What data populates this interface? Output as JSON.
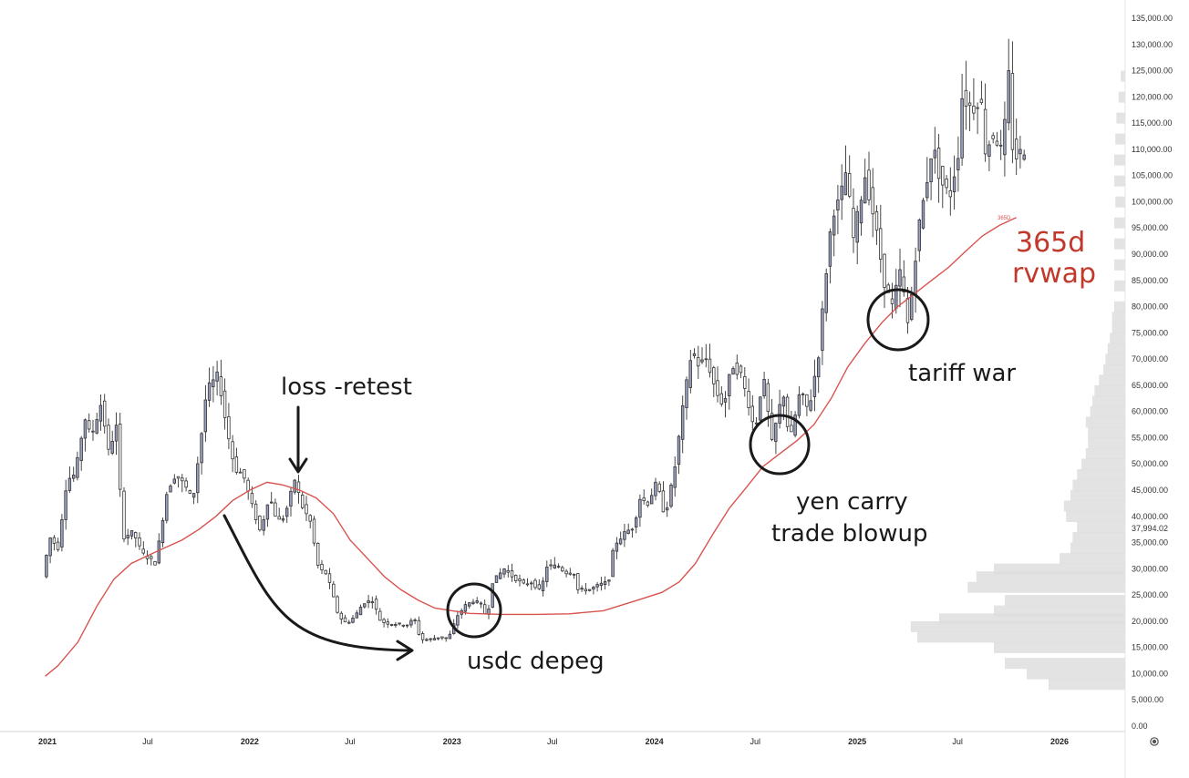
{
  "chart_data": {
    "type": "candlestick",
    "y_axis": {
      "range": [
        0,
        135000
      ],
      "tick_labels": [
        "0.00",
        "5,000.00",
        "10,000.00",
        "15,000.00",
        "20,000.00",
        "25,000.00",
        "30,000.00",
        "35,000.00",
        "40,000.00",
        "45,000.00",
        "50,000.00",
        "55,000.00",
        "60,000.00",
        "65,000.00",
        "70,000.00",
        "75,000.00",
        "80,000.00",
        "85,000.00",
        "90,000.00",
        "95,000.00",
        "100,000.00",
        "105,000.00",
        "110,000.00",
        "115,000.00",
        "120,000.00",
        "125,000.00",
        "130,000.00",
        "135,000.00"
      ],
      "current_price_label": "37,994.02",
      "current_price": 37994.02
    },
    "x_axis": {
      "range": [
        "2020-12",
        "2026-03"
      ],
      "ticks": [
        {
          "date": "2021-01",
          "label": "2021",
          "bold": true
        },
        {
          "date": "2021-07",
          "label": "Jul",
          "bold": false
        },
        {
          "date": "2022-01",
          "label": "2022",
          "bold": true
        },
        {
          "date": "2022-07",
          "label": "Jul",
          "bold": false
        },
        {
          "date": "2023-01",
          "label": "2023",
          "bold": true
        },
        {
          "date": "2023-07",
          "label": "Jul",
          "bold": false
        },
        {
          "date": "2024-01",
          "label": "2024",
          "bold": true
        },
        {
          "date": "2024-07",
          "label": "Jul",
          "bold": false
        },
        {
          "date": "2025-01",
          "label": "2025",
          "bold": true
        },
        {
          "date": "2025-07",
          "label": "Jul",
          "bold": false
        },
        {
          "date": "2026-01",
          "label": "2026",
          "bold": true
        }
      ]
    },
    "price_path": [
      [
        "2020-12-28",
        28500
      ],
      [
        "2021-01-10",
        36000
      ],
      [
        "2021-01-25",
        34000
      ],
      [
        "2021-02-10",
        47000
      ],
      [
        "2021-02-25",
        48000
      ],
      [
        "2021-03-14",
        59000
      ],
      [
        "2021-03-25",
        55000
      ],
      [
        "2021-04-14",
        62000
      ],
      [
        "2021-04-25",
        52000
      ],
      [
        "2021-05-10",
        57000
      ],
      [
        "2021-05-22",
        36000
      ],
      [
        "2021-06-10",
        37000
      ],
      [
        "2021-06-25",
        33000
      ],
      [
        "2021-07-20",
        31000
      ],
      [
        "2021-08-10",
        45000
      ],
      [
        "2021-08-25",
        48000
      ],
      [
        "2021-09-10",
        46000
      ],
      [
        "2021-09-25",
        43000
      ],
      [
        "2021-10-10",
        55000
      ],
      [
        "2021-10-20",
        64000
      ],
      [
        "2021-11-10",
        67000
      ],
      [
        "2021-11-25",
        57000
      ],
      [
        "2021-12-10",
        49000
      ],
      [
        "2021-12-25",
        48000
      ],
      [
        "2022-01-10",
        42000
      ],
      [
        "2022-01-25",
        37000
      ],
      [
        "2022-02-10",
        44000
      ],
      [
        "2022-02-25",
        39000
      ],
      [
        "2022-03-10",
        40000
      ],
      [
        "2022-03-28",
        47000
      ],
      [
        "2022-04-10",
        42000
      ],
      [
        "2022-04-25",
        39000
      ],
      [
        "2022-05-10",
        30000
      ],
      [
        "2022-05-25",
        29000
      ],
      [
        "2022-06-15",
        21000
      ],
      [
        "2022-06-30",
        19500
      ],
      [
        "2022-07-15",
        21000
      ],
      [
        "2022-07-30",
        23500
      ],
      [
        "2022-08-15",
        24000
      ],
      [
        "2022-08-30",
        20000
      ],
      [
        "2022-09-15",
        19500
      ],
      [
        "2022-09-30",
        19500
      ],
      [
        "2022-10-15",
        19200
      ],
      [
        "2022-10-30",
        20500
      ],
      [
        "2022-11-10",
        16500
      ],
      [
        "2022-11-25",
        16500
      ],
      [
        "2022-12-15",
        17000
      ],
      [
        "2022-12-30",
        16600
      ],
      [
        "2023-01-15",
        21000
      ],
      [
        "2023-01-30",
        23000
      ],
      [
        "2023-02-15",
        24000
      ],
      [
        "2023-02-28",
        23000
      ],
      [
        "2023-03-10",
        20500
      ],
      [
        "2023-03-20",
        27500
      ],
      [
        "2023-04-10",
        30000
      ],
      [
        "2023-04-25",
        28500
      ],
      [
        "2023-05-15",
        27000
      ],
      [
        "2023-05-30",
        27500
      ],
      [
        "2023-06-15",
        25500
      ],
      [
        "2023-06-25",
        30500
      ],
      [
        "2023-07-15",
        30500
      ],
      [
        "2023-07-30",
        29300
      ],
      [
        "2023-08-15",
        29200
      ],
      [
        "2023-08-20",
        26000
      ],
      [
        "2023-09-10",
        26000
      ],
      [
        "2023-09-30",
        27000
      ],
      [
        "2023-10-15",
        27500
      ],
      [
        "2023-10-25",
        34500
      ],
      [
        "2023-11-15",
        37000
      ],
      [
        "2023-11-30",
        38000
      ],
      [
        "2023-12-10",
        43500
      ],
      [
        "2023-12-25",
        42500
      ],
      [
        "2024-01-10",
        46500
      ],
      [
        "2024-01-25",
        40000
      ],
      [
        "2024-02-10",
        48000
      ],
      [
        "2024-02-28",
        62000
      ],
      [
        "2024-03-14",
        72000
      ],
      [
        "2024-03-25",
        69000
      ],
      [
        "2024-04-10",
        70000
      ],
      [
        "2024-04-25",
        64000
      ],
      [
        "2024-05-10",
        61000
      ],
      [
        "2024-05-25",
        69000
      ],
      [
        "2024-06-10",
        67000
      ],
      [
        "2024-06-25",
        61000
      ],
      [
        "2024-07-05",
        56000
      ],
      [
        "2024-07-20",
        67000
      ],
      [
        "2024-08-05",
        54000
      ],
      [
        "2024-08-25",
        64000
      ],
      [
        "2024-09-06",
        54000
      ],
      [
        "2024-09-25",
        64000
      ],
      [
        "2024-10-10",
        60000
      ],
      [
        "2024-10-28",
        71000
      ],
      [
        "2024-11-12",
        88000
      ],
      [
        "2024-11-22",
        98000
      ],
      [
        "2024-12-05",
        100000
      ],
      [
        "2024-12-17",
        106000
      ],
      [
        "2024-12-30",
        93000
      ],
      [
        "2025-01-20",
        105000
      ],
      [
        "2025-02-05",
        97000
      ],
      [
        "2025-02-25",
        84000
      ],
      [
        "2025-03-10",
        80000
      ],
      [
        "2025-03-25",
        87000
      ],
      [
        "2025-04-08",
        76000
      ],
      [
        "2025-04-25",
        94000
      ],
      [
        "2025-05-10",
        103000
      ],
      [
        "2025-05-22",
        111000
      ],
      [
        "2025-06-05",
        104000
      ],
      [
        "2025-06-22",
        101000
      ],
      [
        "2025-07-10",
        111000
      ],
      [
        "2025-07-14",
        120000
      ],
      [
        "2025-07-30",
        118000
      ],
      [
        "2025-08-10",
        118000
      ],
      [
        "2025-08-14",
        123000
      ],
      [
        "2025-08-25",
        110000
      ],
      [
        "2025-09-10",
        113000
      ],
      [
        "2025-09-25",
        109000
      ],
      [
        "2025-10-06",
        124000
      ],
      [
        "2025-10-12",
        111000
      ],
      [
        "2025-10-22",
        108000
      ],
      [
        "2025-10-30",
        110000
      ]
    ],
    "rvwap_365d": [
      [
        "2020-12-28",
        9500
      ],
      [
        "2021-01-20",
        11500
      ],
      [
        "2021-02-25",
        16000
      ],
      [
        "2021-04-01",
        23000
      ],
      [
        "2021-05-01",
        28000
      ],
      [
        "2021-06-01",
        31000
      ],
      [
        "2021-07-01",
        32500
      ],
      [
        "2021-08-01",
        34000
      ],
      [
        "2021-09-01",
        35500
      ],
      [
        "2021-10-01",
        37500
      ],
      [
        "2021-11-01",
        40000
      ],
      [
        "2021-12-01",
        43000
      ],
      [
        "2022-01-01",
        45000
      ],
      [
        "2022-02-01",
        46500
      ],
      [
        "2022-03-01",
        46000
      ],
      [
        "2022-04-01",
        45000
      ],
      [
        "2022-05-01",
        43500
      ],
      [
        "2022-06-01",
        40500
      ],
      [
        "2022-07-01",
        35500
      ],
      [
        "2022-08-01",
        32000
      ],
      [
        "2022-09-01",
        28500
      ],
      [
        "2022-10-01",
        26000
      ],
      [
        "2022-11-01",
        24000
      ],
      [
        "2022-12-01",
        22500
      ],
      [
        "2023-01-01",
        22000
      ],
      [
        "2023-02-01",
        21500
      ],
      [
        "2023-04-01",
        21300
      ],
      [
        "2023-06-01",
        21300
      ],
      [
        "2023-08-01",
        21400
      ],
      [
        "2023-10-01",
        22000
      ],
      [
        "2023-12-01",
        24000
      ],
      [
        "2024-01-15",
        25500
      ],
      [
        "2024-02-15",
        27500
      ],
      [
        "2024-03-15",
        31000
      ],
      [
        "2024-04-15",
        36500
      ],
      [
        "2024-05-15",
        41500
      ],
      [
        "2024-06-15",
        45500
      ],
      [
        "2024-07-15",
        49500
      ],
      [
        "2024-08-15",
        52000
      ],
      [
        "2024-09-15",
        54500
      ],
      [
        "2024-10-15",
        57500
      ],
      [
        "2024-11-15",
        62500
      ],
      [
        "2024-12-15",
        68500
      ],
      [
        "2025-01-15",
        73000
      ],
      [
        "2025-02-15",
        77000
      ],
      [
        "2025-03-15",
        80000
      ],
      [
        "2025-04-15",
        82500
      ],
      [
        "2025-05-15",
        85000
      ],
      [
        "2025-06-15",
        87500
      ],
      [
        "2025-07-15",
        90500
      ],
      [
        "2025-08-15",
        93500
      ],
      [
        "2025-09-15",
        95500
      ],
      [
        "2025-10-15",
        97000
      ]
    ],
    "rvwap_tag": "365D",
    "volume_profile": [
      [
        8000,
        0.35
      ],
      [
        10000,
        0.45
      ],
      [
        12000,
        0.55
      ],
      [
        15000,
        0.6
      ],
      [
        17000,
        0.95
      ],
      [
        19000,
        0.98
      ],
      [
        20500,
        0.85
      ],
      [
        22000,
        0.6
      ],
      [
        24000,
        0.55
      ],
      [
        26500,
        0.72
      ],
      [
        28500,
        0.68
      ],
      [
        30000,
        0.6
      ],
      [
        32000,
        0.3
      ],
      [
        34000,
        0.25
      ],
      [
        36000,
        0.24
      ],
      [
        38000,
        0.22
      ],
      [
        40000,
        0.27
      ],
      [
        42000,
        0.28
      ],
      [
        44000,
        0.25
      ],
      [
        46000,
        0.24
      ],
      [
        48000,
        0.22
      ],
      [
        50000,
        0.2
      ],
      [
        52000,
        0.18
      ],
      [
        54000,
        0.17
      ],
      [
        56000,
        0.17
      ],
      [
        58000,
        0.18
      ],
      [
        60000,
        0.16
      ],
      [
        62000,
        0.15
      ],
      [
        64000,
        0.14
      ],
      [
        66000,
        0.12
      ],
      [
        68000,
        0.1
      ],
      [
        70000,
        0.09
      ],
      [
        72000,
        0.08
      ],
      [
        74000,
        0.07
      ],
      [
        76000,
        0.06
      ],
      [
        78000,
        0.06
      ],
      [
        80000,
        0.05
      ],
      [
        84000,
        0.05
      ],
      [
        88000,
        0.05
      ],
      [
        92000,
        0.05
      ],
      [
        96000,
        0.05
      ],
      [
        100000,
        0.045
      ],
      [
        104000,
        0.05
      ],
      [
        108000,
        0.05
      ],
      [
        112000,
        0.045
      ],
      [
        116000,
        0.04
      ],
      [
        120000,
        0.03
      ],
      [
        124000,
        0.02
      ],
      [
        126000,
        0.0
      ]
    ],
    "annotations": [
      {
        "id": "loss-retest",
        "text": "loss -retest"
      },
      {
        "id": "usdc-depeg",
        "text": "usdc depeg"
      },
      {
        "id": "yen-carry",
        "text": "yen carry"
      },
      {
        "id": "trade-blowup",
        "text": "trade blowup"
      },
      {
        "id": "tariff-war",
        "text": "tariff war"
      },
      {
        "id": "rvwap-365d",
        "text": "365d"
      },
      {
        "id": "rvwap-label",
        "text": "rvwap"
      }
    ],
    "colors": {
      "up_candle": "#9aa0c2",
      "down_candle": "#ffffff",
      "rvwap_line": "#d9534f",
      "annotation": "#1a1a1a",
      "annotation_red": "#c0392b",
      "volume_profile": "#dcdcdc"
    },
    "settings_icon": "gear-icon"
  }
}
